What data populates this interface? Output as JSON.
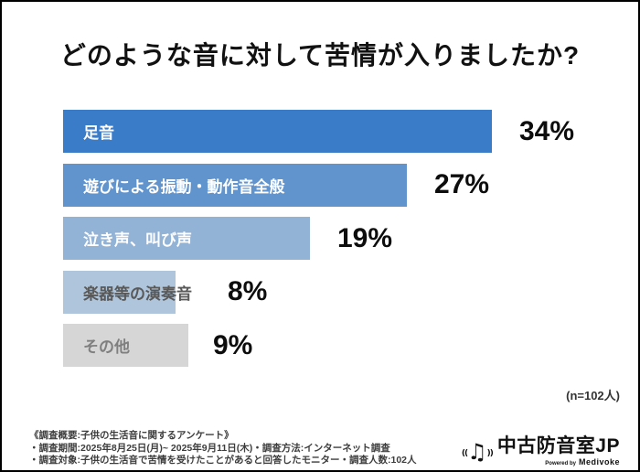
{
  "chart_data": {
    "type": "bar",
    "orientation": "horizontal",
    "title": "どのような音に対して苦情が入りましたか?",
    "categories": [
      "足音",
      "遊びによる振動・動作音全般",
      "泣き声、叫び声",
      "楽器等の演奏音",
      "その他"
    ],
    "values": [
      34,
      27,
      19,
      8,
      9
    ],
    "value_labels": [
      "34%",
      "27%",
      "19%",
      "8%",
      "9%"
    ],
    "value_suffix": "%",
    "sample_note": "(n=102人)",
    "xlim": [
      0,
      40
    ],
    "grid": false,
    "legend": false,
    "bar_colors": [
      "#3A7CC8",
      "#6193CD",
      "#92B2D6",
      "#AEC5DC",
      "#D6D6D6"
    ],
    "category_label_colors": [
      "#FFFFFF",
      "#FFFFFF",
      "#FFFFFF",
      "#595959",
      "#7F7F7F"
    ],
    "value_label_color": "#0D0D0D"
  },
  "survey": {
    "note_line1": "《調査概要:子供の生活音に関するアンケート》",
    "note_line2": "・調査期間:2025年8月25日(月)~ 2025年9月11日(木)・調査方法:インターネット調査",
    "note_line3": "・調査対象:子供の生活音で苦情を受けたことがあると回答したモニター・調査人数:102人"
  },
  "logo": {
    "icon": "music-note-icon",
    "name": "中古防音室JP",
    "powered_by": "Powered by",
    "brand": "Medivoke"
  }
}
